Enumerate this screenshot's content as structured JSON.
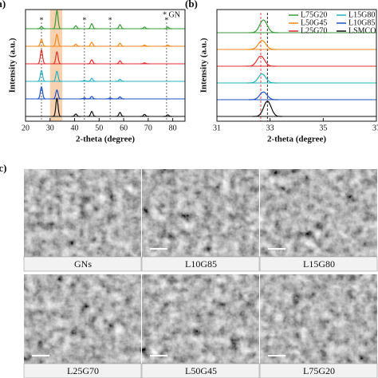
{
  "chart_data": [
    {
      "type": "line",
      "panel_label": "(a)",
      "x_label": "2-theta (degree)",
      "y_label": "Intensity (a.u.)",
      "xlim": [
        20,
        85
      ],
      "xticks": [
        20,
        30,
        40,
        50,
        60,
        70,
        80
      ],
      "annotation": "* GN",
      "marker": "*",
      "gn_peaks": [
        26.5,
        44,
        54.5,
        77.5
      ],
      "highlight": [
        30,
        35
      ],
      "highlight_color": "#f7d2b0",
      "series": [
        {
          "name": "L75G20",
          "color": "#3a9a3a",
          "x": [
            26.5,
            32.8,
            40.5,
            47,
            58.5,
            68.5,
            78
          ],
          "values": [
            0.1,
            0.9,
            0.15,
            0.25,
            0.2,
            0.08,
            0.08
          ]
        },
        {
          "name": "L50G45",
          "color": "#f08a1e",
          "x": [
            26.5,
            32.8,
            40.5,
            47,
            58.5,
            68.5,
            78
          ],
          "values": [
            0.35,
            0.6,
            0.1,
            0.2,
            0.15,
            0.06,
            0.06
          ]
        },
        {
          "name": "L25G70",
          "color": "#e03030",
          "x": [
            26.5,
            32.8,
            47,
            58.5,
            68.5
          ],
          "values": [
            0.7,
            0.6,
            0.2,
            0.15,
            0.05
          ]
        },
        {
          "name": "L15G80",
          "color": "#2ab0c0",
          "x": [
            26.5,
            32.8,
            44,
            47,
            58.5
          ],
          "values": [
            0.55,
            0.5,
            0.05,
            0.15,
            0.1
          ]
        },
        {
          "name": "L10G85",
          "color": "#2050c0",
          "x": [
            26.5,
            32.8,
            44,
            47,
            54.5,
            58.5
          ],
          "values": [
            0.6,
            0.45,
            0.05,
            0.12,
            0.05,
            0.1
          ]
        },
        {
          "name": "LSMCO",
          "color": "#111111",
          "x": [
            32.8,
            40.5,
            47,
            58.5,
            68.5,
            78
          ],
          "values": [
            0.9,
            0.12,
            0.25,
            0.2,
            0.1,
            0.08
          ]
        }
      ]
    },
    {
      "type": "line",
      "panel_label": "(b)",
      "x_label": "2-theta (degree)",
      "y_label": "Intensity (a.u.)",
      "xlim": [
        31,
        37
      ],
      "xticks": [
        31,
        33,
        35,
        37
      ],
      "legend": "upper right",
      "ref_lines": [
        {
          "x": 32.65,
          "color": "#e03030"
        },
        {
          "x": 32.9,
          "color": "#111111"
        }
      ],
      "series": [
        {
          "name": "L75G20",
          "color": "#3a9a3a",
          "x": [
            32.75
          ],
          "values": [
            0.5
          ]
        },
        {
          "name": "L50G45",
          "color": "#f08a1e",
          "x": [
            32.7
          ],
          "values": [
            0.35
          ]
        },
        {
          "name": "L25G70",
          "color": "#e03030",
          "x": [
            32.65
          ],
          "values": [
            0.4
          ]
        },
        {
          "name": "L15G80",
          "color": "#2ab0c0",
          "x": [
            32.7
          ],
          "values": [
            0.35
          ]
        },
        {
          "name": "L10G85",
          "color": "#2050c0",
          "x": [
            32.75
          ],
          "values": [
            0.3
          ]
        },
        {
          "name": "LSMCO",
          "color": "#111111",
          "x": [
            32.9
          ],
          "values": [
            0.6
          ]
        }
      ]
    }
  ],
  "figure_c": {
    "panel_label": "(c)",
    "images": [
      "GNs",
      "L10G85",
      "L15G80",
      "L25G70",
      "L50G45",
      "L75G20"
    ]
  }
}
